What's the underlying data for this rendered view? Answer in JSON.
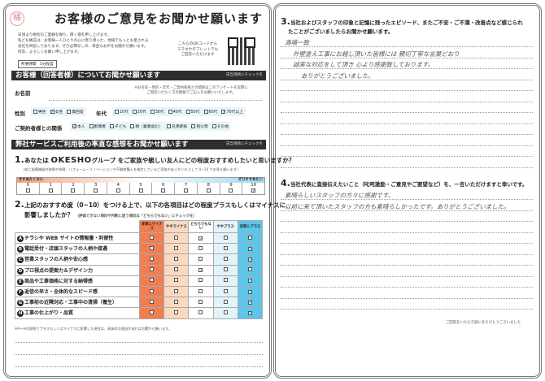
{
  "header": {
    "title": "お客様のご意見をお聞かせ願います",
    "logo_text": "桶",
    "intro": [
      "日頃より格別のご愛顧を賜り、厚く御礼申し上げます。",
      "私ども桶庄は、お客様一人ひとりの心に寄り添った、地域でもっとも愛される",
      "会社を目指しております。ぜひ忌憚なしの、率直なお声をお聞かせ願います。",
      "何卒、よろしくお願い申し上げます。"
    ],
    "time_required": "所要時間　5分程度",
    "qr_text": [
      "こちらのQRコードから",
      "スマホやタブレットでも",
      "ご回答いただけます"
    ]
  },
  "section1": {
    "title": "お客様（回答者様）についてお聞かせ願います",
    "check_hint": "該当項目にチェックを",
    "name_label": "お名前",
    "name_note": [
      "※お名前・性別・年代・ご契約者様との関係はこのアンケートを実際に",
      "ご回答いただく方の情報でご記入をお願いいたします。"
    ],
    "gender_label": "性別",
    "genders": [
      {
        "label": "男性",
        "checked": false
      },
      {
        "label": "女性",
        "checked": true
      },
      {
        "label": "無回答",
        "checked": false
      }
    ],
    "age_label": "年代",
    "ages": [
      {
        "label": "10代",
        "checked": false
      },
      {
        "label": "20代",
        "checked": false
      },
      {
        "label": "30代",
        "checked": false
      },
      {
        "label": "40代",
        "checked": false
      },
      {
        "label": "50代",
        "checked": false
      },
      {
        "label": "60代",
        "checked": false
      },
      {
        "label": "70代以上",
        "checked": true
      }
    ],
    "relation_label": "ご契約者様との関係",
    "relations": [
      {
        "label": "本人",
        "checked": true
      },
      {
        "label": "配偶者",
        "checked": false
      },
      {
        "label": "子ども",
        "checked": false
      },
      {
        "label": "親（義親含む）",
        "checked": false
      },
      {
        "label": "兄弟姉妹",
        "checked": false
      },
      {
        "label": "祖父母",
        "checked": false
      },
      {
        "label": "その他",
        "checked": false
      }
    ]
  },
  "section2": {
    "title": "弊社サービスご利用後の率直な感想をお聞かせ願います",
    "check_hint": "該当項目にチェックを"
  },
  "q1": {
    "number": "1.",
    "prefix": "あなたは",
    "brand": "OKESHO",
    "text": "グループ をご家族や親しい友人にどの程度おすすめしたいと思いますか？",
    "note": "（仮に設備機器の取替や修理、リフォーム・リノベーションや不動産購入を検討しているご家族や友人がいたとして 0~10 でお答え願います）",
    "low_label": "すすめたくない",
    "high_label": "ぜひすすめたい",
    "scale": [
      "0",
      "1",
      "2",
      "3",
      "4",
      "5",
      "6",
      "7",
      "8",
      "9",
      "10"
    ],
    "selected": 10
  },
  "q2": {
    "number": "2.",
    "text": "上記のおすすめ度（0~10）をつける上で、以下の各項目はどの程度プラスもしくはマイナスに",
    "text2": "影響しましたか？",
    "note": "（評価できない項目や判断に迷う項目は「どちらでもない」にチェックを）",
    "columns": [
      "非常にマイナス",
      "ややマイナス",
      "どちらでもない",
      "ややプラス",
      "非常にプラス"
    ],
    "rows": [
      {
        "letter": "A",
        "label": "チラシや WEB サイトの情報量・利便性",
        "selected": 2
      },
      {
        "letter": "B",
        "label": "電話受付・店頭スタッフの人柄や接遇",
        "selected": 4
      },
      {
        "letter": "C",
        "label": "営業スタッフの人柄や安心感",
        "selected": 4
      },
      {
        "letter": "D",
        "label": "プロ視点の提案力＆デザイン力",
        "selected": 2
      },
      {
        "letter": "E",
        "label": "商品や工事価格に対する納得感",
        "selected": 4
      },
      {
        "letter": "F",
        "label": "返信の早さ・全体的なスピード感",
        "selected": 4
      },
      {
        "letter": "G",
        "label": "工事前の近隣対応・工事中の清掃（養生）",
        "selected": 4
      },
      {
        "letter": "H",
        "label": "工事の仕上がり・品質",
        "selected": 4
      }
    ],
    "footnote": "※A〜Hの設問でプラスもしくはマイナスに影響した項目は、具体的な理由があればお聞かせ願います。"
  },
  "q3": {
    "number": "3.",
    "text": "当社およびスタッフの印象と記憶に残ったエピソード、またご不安・ご不満・改善点など感じられ",
    "text2": "たことがございましたらお聞かせ願います。",
    "answer": [
      "満場一致",
      "外壁塗え工事にお越し頂いた皆様には 親切丁寧な言葉どおり",
      "誠実な対応をして頂き 心より感謝致しております。",
      "ありがとうございました。"
    ]
  },
  "q4": {
    "number": "4.",
    "text": "当社代表に直接伝えたいこと（叱咤激励・ご意見やご要望など）を、一言いただけますと幸いです。",
    "answer": [
      "素晴らしいスタッフの方々に感謝です。",
      "以前に来て頂いたスタッフの方も素晴らしかったです。ありがとうございました。"
    ]
  },
  "footer": {
    "thanks": "ご回答をいただき誠にありがとうございました"
  },
  "colors": {
    "very_minus": "#f07e52",
    "minus": "#fbd9c0",
    "neutral": "#ffffff",
    "plus": "#e2f4fb",
    "very_plus": "#5cc6ea",
    "band": "#2e2e2e"
  }
}
